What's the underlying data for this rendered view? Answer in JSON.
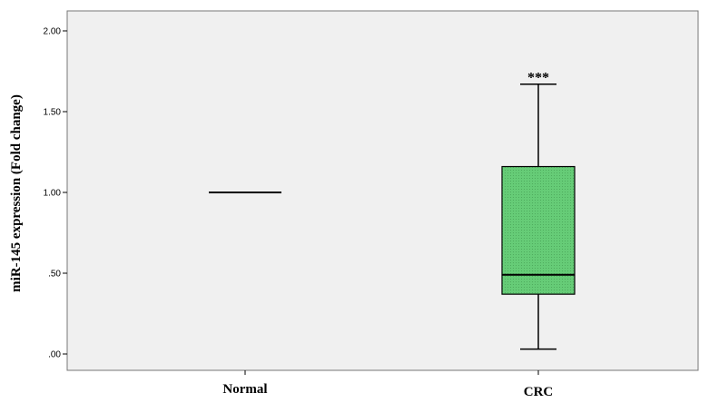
{
  "chart_data": {
    "type": "box",
    "ylabel": "miR-145 expression (Fold change)",
    "xlabel": "",
    "ylim": [
      -0.05,
      2.05
    ],
    "y_ticks": [
      {
        "value": 0.0,
        "label": ".00"
      },
      {
        "value": 0.5,
        "label": ".50"
      },
      {
        "value": 1.0,
        "label": "1.00"
      },
      {
        "value": 1.5,
        "label": "1.50"
      },
      {
        "value": 2.0,
        "label": "2.00"
      }
    ],
    "categories": [
      "Normal",
      "CRC"
    ],
    "boxes": [
      {
        "category": "Normal",
        "min": 1.0,
        "q1": 1.0,
        "median": 1.0,
        "q3": 1.0,
        "max": 1.0,
        "fill": "none",
        "annotation": ""
      },
      {
        "category": "CRC",
        "min": 0.03,
        "q1": 0.37,
        "median": 0.49,
        "q3": 1.16,
        "max": 1.67,
        "fill": "#66cc77",
        "annotation": "***"
      }
    ],
    "plot_background": "#f0f0f0",
    "grid": false,
    "legend": "none"
  }
}
